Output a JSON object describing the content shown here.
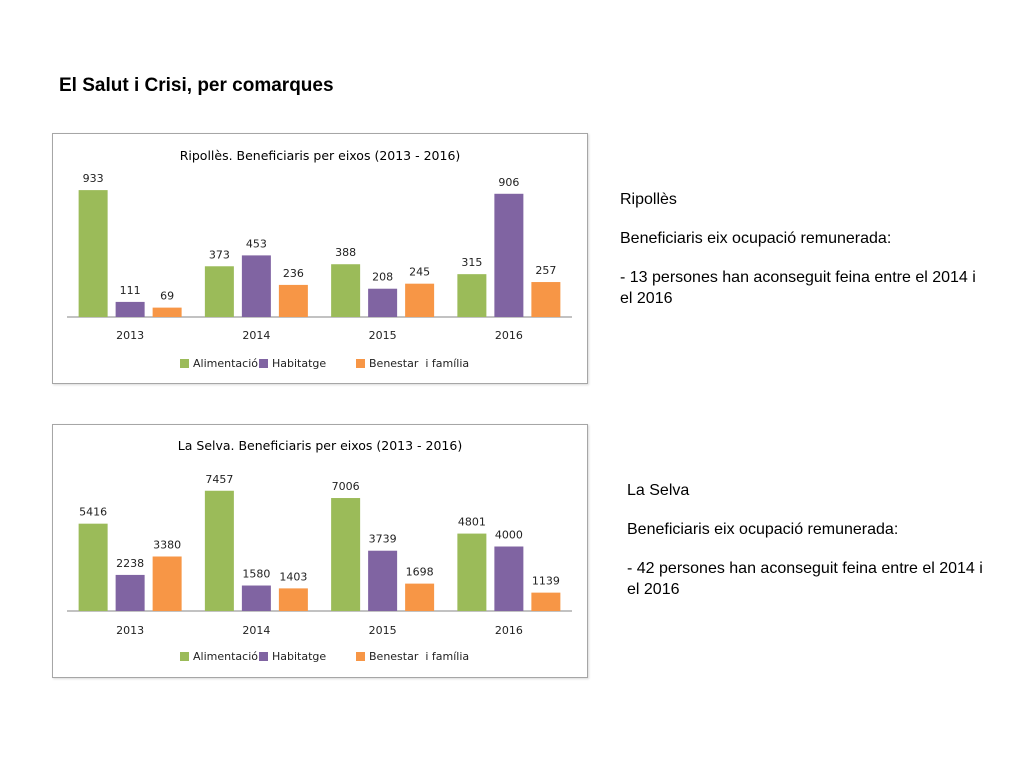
{
  "page": {
    "title": "El Salut i Crisi, per comarques"
  },
  "colors": {
    "alimentacio": "#9bbb59",
    "habitatge": "#8064a2",
    "benestar": "#f79646"
  },
  "chart_data": [
    {
      "type": "bar",
      "title": "Ripollès. Beneficiaris per eixos (2013 - 2016)",
      "categories": [
        "2013",
        "2014",
        "2015",
        "2016"
      ],
      "series": [
        {
          "name": "Alimentació",
          "values": [
            933,
            373,
            388,
            315
          ]
        },
        {
          "name": "Habitatge",
          "values": [
            111,
            453,
            208,
            906
          ]
        },
        {
          "name": "Benestar  i família",
          "values": [
            69,
            236,
            245,
            257
          ]
        }
      ],
      "ylim": [
        0,
        1000
      ],
      "legend_position": "bottom",
      "grid": false
    },
    {
      "type": "bar",
      "title": "La Selva. Beneficiaris per eixos (2013 - 2016)",
      "categories": [
        "2013",
        "2014",
        "2015",
        "2016"
      ],
      "series": [
        {
          "name": "Alimentació",
          "values": [
            5416,
            7457,
            7006,
            4801
          ]
        },
        {
          "name": "Habitatge",
          "values": [
            2238,
            1580,
            3739,
            4000
          ]
        },
        {
          "name": "Benestar  i família",
          "values": [
            3380,
            1403,
            1698,
            1139
          ]
        }
      ],
      "ylim": [
        0,
        8000
      ],
      "legend_position": "bottom",
      "grid": false
    }
  ],
  "sections": [
    {
      "region": "Ripollès",
      "subtitle": "Beneficiaris eix ocupació remunerada:",
      "detail": "- 13 persones han aconseguit feina entre el 2014 i el 2016"
    },
    {
      "region": "La Selva",
      "subtitle": "Beneficiaris eix ocupació remunerada:",
      "detail": "- 42 persones han aconseguit feina entre el 2014 i el 2016"
    }
  ]
}
